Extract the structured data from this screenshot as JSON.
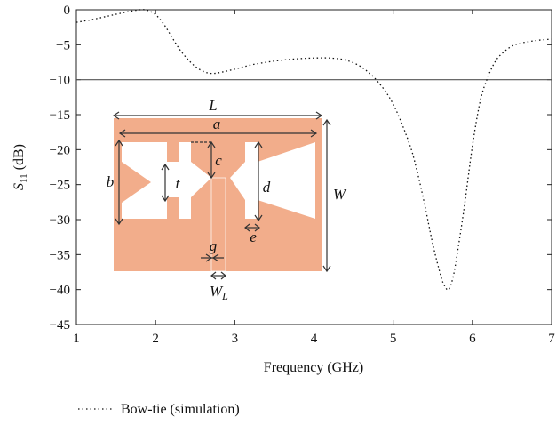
{
  "chart_data": {
    "type": "line",
    "xlabel": "Frequency (GHz)",
    "ylabel_main": "S",
    "ylabel_sub": "11",
    "ylabel_unit": " (dB)",
    "xlim": [
      1,
      7
    ],
    "ylim": [
      -45,
      0
    ],
    "x_ticks": [
      1,
      2,
      3,
      4,
      5,
      6,
      7
    ],
    "y_ticks": [
      0,
      -5,
      -10,
      -15,
      -20,
      -25,
      -30,
      -35,
      -40,
      -45
    ],
    "x_tick_labels": [
      "1",
      "2",
      "3",
      "4",
      "5",
      "6",
      "7"
    ],
    "y_tick_labels": [
      "0",
      "−5",
      "−10",
      "−15",
      "−20",
      "−25",
      "−30",
      "−35",
      "−40",
      "−45"
    ],
    "grid": false,
    "reference_line": {
      "y": -10,
      "color": "#555555"
    },
    "series": [
      {
        "name": "Bow-tie (simulation)",
        "style": "dotted",
        "color": "#111111",
        "x": [
          1.0,
          1.2,
          1.4,
          1.6,
          1.8,
          1.9,
          2.0,
          2.1,
          2.2,
          2.3,
          2.4,
          2.5,
          2.6,
          2.7,
          2.8,
          3.0,
          3.2,
          3.4,
          3.6,
          3.8,
          4.0,
          4.2,
          4.4,
          4.6,
          4.8,
          5.0,
          5.2,
          5.3,
          5.4,
          5.5,
          5.6,
          5.65,
          5.7,
          5.75,
          5.8,
          5.9,
          6.0,
          6.1,
          6.2,
          6.3,
          6.4,
          6.5,
          6.6,
          6.8,
          7.0
        ],
        "y": [
          -1.8,
          -1.4,
          -0.9,
          -0.4,
          0.0,
          -0.1,
          -0.7,
          -2.0,
          -3.8,
          -5.6,
          -7.0,
          -8.1,
          -8.8,
          -9.1,
          -9.0,
          -8.5,
          -7.9,
          -7.5,
          -7.2,
          -7.0,
          -6.9,
          -6.9,
          -7.2,
          -8.2,
          -10.2,
          -13.5,
          -19.0,
          -23.0,
          -28.0,
          -33.5,
          -38.0,
          -39.5,
          -40.0,
          -38.5,
          -35.5,
          -28.0,
          -19.5,
          -13.0,
          -9.5,
          -7.2,
          -6.0,
          -5.2,
          -4.8,
          -4.4,
          -4.2
        ]
      }
    ],
    "legend": {
      "placement": "bottom",
      "entries": [
        "Bow-tie (simulation)"
      ]
    },
    "inset": {
      "fill_color": "#f2ad8b",
      "dimension_labels": [
        "L",
        "a",
        "b",
        "c",
        "t",
        "d",
        "W",
        "e",
        "g",
        "W"
      ],
      "w_l_label_main": "W",
      "w_l_label_sub": "L"
    }
  }
}
